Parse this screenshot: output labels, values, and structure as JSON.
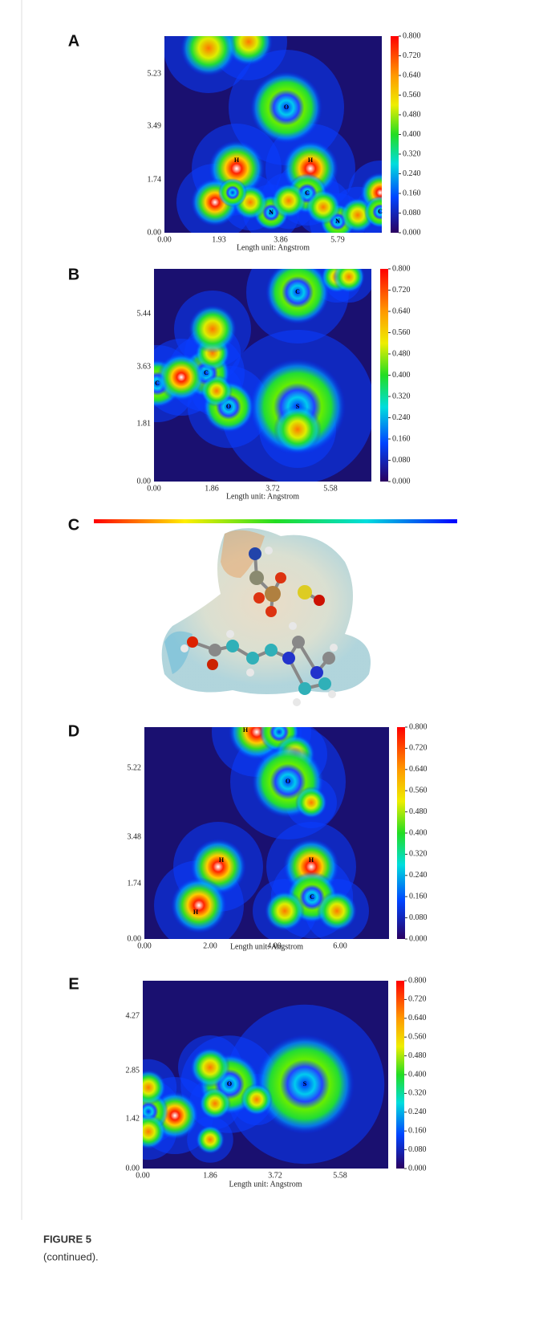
{
  "panels": [
    {
      "label": "A",
      "yticks": [
        "5.23",
        "3.49",
        "1.74",
        "0.00"
      ],
      "xticks": [
        "0.00",
        "1.93",
        "3.86",
        "5.79"
      ],
      "x_title": "Length unit: Angstrom",
      "atoms": [
        "O",
        "H",
        "H",
        "C",
        "N",
        "N",
        "C"
      ]
    },
    {
      "label": "B",
      "yticks": [
        "5.44",
        "3.63",
        "1.81",
        "0.00"
      ],
      "xticks": [
        "0.00",
        "1.86",
        "3.72",
        "5.58"
      ],
      "x_title": "Length unit: Angstrom",
      "atoms": [
        "C",
        "C",
        "C",
        "O",
        "S"
      ]
    },
    {
      "label": "C"
    },
    {
      "label": "D",
      "yticks": [
        "5.22",
        "3.48",
        "1.74",
        "0.00"
      ],
      "xticks": [
        "0.00",
        "2.00",
        "4.00",
        "6.00"
      ],
      "x_title": "Length unit: Angstrom",
      "atoms": [
        "H",
        "O",
        "H",
        "H",
        "C",
        "H"
      ]
    },
    {
      "label": "E",
      "yticks": [
        "4.27",
        "2.85",
        "1.42",
        "0.00"
      ],
      "xticks": [
        "0.00",
        "1.86",
        "3.72",
        "5.58"
      ],
      "x_title": "Length unit: Angstrom",
      "atoms": [
        "O",
        "S"
      ]
    }
  ],
  "colorbar_ticks": [
    "0.800",
    "0.720",
    "0.640",
    "0.560",
    "0.480",
    "0.400",
    "0.320",
    "0.240",
    "0.160",
    "0.080",
    "0.000"
  ],
  "caption": {
    "title": "FIGURE 5",
    "text": "(continued)."
  }
}
